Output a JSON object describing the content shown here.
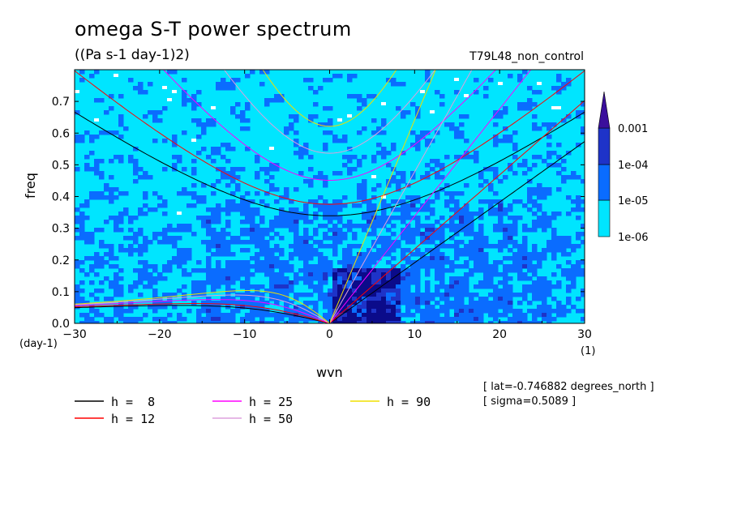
{
  "chart_data": {
    "type": "heatmap",
    "title": "omega S-T power spectrum",
    "subtitle": "((Pa s-1 day-1)2)",
    "experiment": "T79L48_non_control",
    "xlabel": "wvn",
    "ylabel": "freq",
    "x_unit": "(1)",
    "y_unit": "(day-1)",
    "xlim": [
      -30,
      30
    ],
    "ylim": [
      0,
      0.8
    ],
    "x_ticks": [
      "-30",
      "-20",
      "-10",
      "0",
      "10",
      "20",
      "30"
    ],
    "y_ticks": [
      "0.0",
      "0.1",
      "0.2",
      "0.3",
      "0.4",
      "0.5",
      "0.6",
      "0.7"
    ],
    "colorbar": {
      "levels": [
        "1e-06",
        "1e-05",
        "1e-04",
        "0.001"
      ],
      "colors": [
        "#00e5ff",
        "#0a6cff",
        "#1e33c8",
        "#0b0b8a",
        "#3b0f9c"
      ]
    },
    "dispersion_curves": [
      {
        "name": "h =  8",
        "color": "#000000",
        "h": 8
      },
      {
        "name": "h = 12",
        "color": "#ff0000",
        "h": 12
      },
      {
        "name": "h = 25",
        "color": "#ff00ff",
        "h": 25
      },
      {
        "name": "h = 50",
        "color": "#dda0dd",
        "h": 50
      },
      {
        "name": "h = 90",
        "color": "#f0e000",
        "h": 90
      }
    ],
    "annotations": [
      "[ lat=-0.746882 degrees_north ]",
      "[ sigma=0.5089 ]"
    ]
  }
}
